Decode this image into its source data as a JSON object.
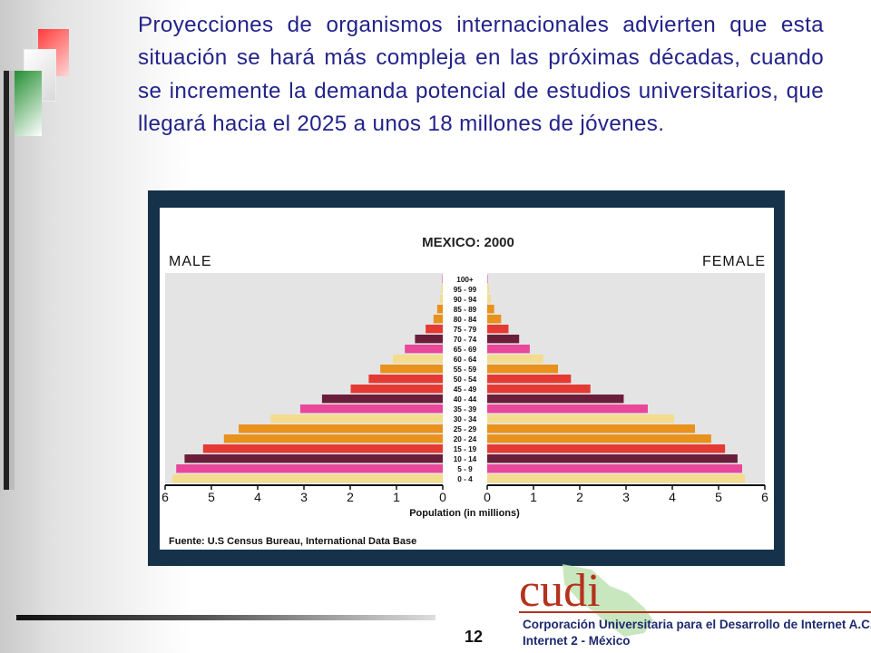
{
  "slide": {
    "paragraph": "Proyecciones de organismos internacionales advierten que esta situación se hará más compleja en las próximas décadas, cuando se incremente la demanda potencial de estudios universitarios, que llegará hacia el 2025 a unos 18 millones de jóvenes.",
    "page_number": "12"
  },
  "logo": {
    "wordmark": "cudi",
    "line1": "Corporación Universitaria para el Desarrollo de Internet A.C.",
    "line2": "Internet 2 - México"
  },
  "chart_data": {
    "type": "bar",
    "orientation": "horizontal-population-pyramid",
    "title": "MEXICO: 2000",
    "left_label": "MALE",
    "right_label": "FEMALE",
    "xlabel": "Population (in millions)",
    "source": "Fuente: U.S Census Bureau, International Data Base",
    "xlim": [
      0,
      6
    ],
    "male_ticks": [
      "6",
      "5",
      "4",
      "3",
      "2",
      "1",
      "0"
    ],
    "female_ticks": [
      "0",
      "1",
      "2",
      "3",
      "4",
      "5",
      "6"
    ],
    "grid": false,
    "categories": [
      "100+",
      "95 - 99",
      "90 - 94",
      "85 - 89",
      "80 - 84",
      "75 - 79",
      "70 - 74",
      "65 - 69",
      "60 - 64",
      "55 - 59",
      "50 - 54",
      "45 - 49",
      "40 - 44",
      "35 - 39",
      "30 - 34",
      "25 - 29",
      "20 - 24",
      "15 - 19",
      "10 - 14",
      "5 - 9",
      "0 - 4"
    ],
    "series": [
      {
        "name": "MALE",
        "values": [
          0.01,
          0.03,
          0.06,
          0.12,
          0.2,
          0.37,
          0.6,
          0.82,
          1.08,
          1.35,
          1.6,
          1.99,
          2.61,
          3.08,
          3.72,
          4.41,
          4.73,
          5.18,
          5.58,
          5.76,
          5.84
        ]
      },
      {
        "name": "FEMALE",
        "values": [
          0.01,
          0.04,
          0.08,
          0.15,
          0.3,
          0.46,
          0.69,
          0.92,
          1.21,
          1.53,
          1.81,
          2.23,
          2.95,
          3.47,
          4.04,
          4.49,
          4.84,
          5.14,
          5.41,
          5.51,
          5.57
        ]
      }
    ],
    "bar_colors": [
      "#e8479a",
      "#f3dc8e",
      "#f3dc8e",
      "#e8911c",
      "#e8911c",
      "#e53a33",
      "#6b1e3a",
      "#e8479a",
      "#f3dc8e",
      "#e8911c",
      "#e53a33",
      "#e53a33",
      "#6b1e3a",
      "#e8479a",
      "#f3dc8e",
      "#e8911c",
      "#e8911c",
      "#e53a33",
      "#6b1e3a",
      "#e8479a",
      "#f3dc8e"
    ]
  }
}
